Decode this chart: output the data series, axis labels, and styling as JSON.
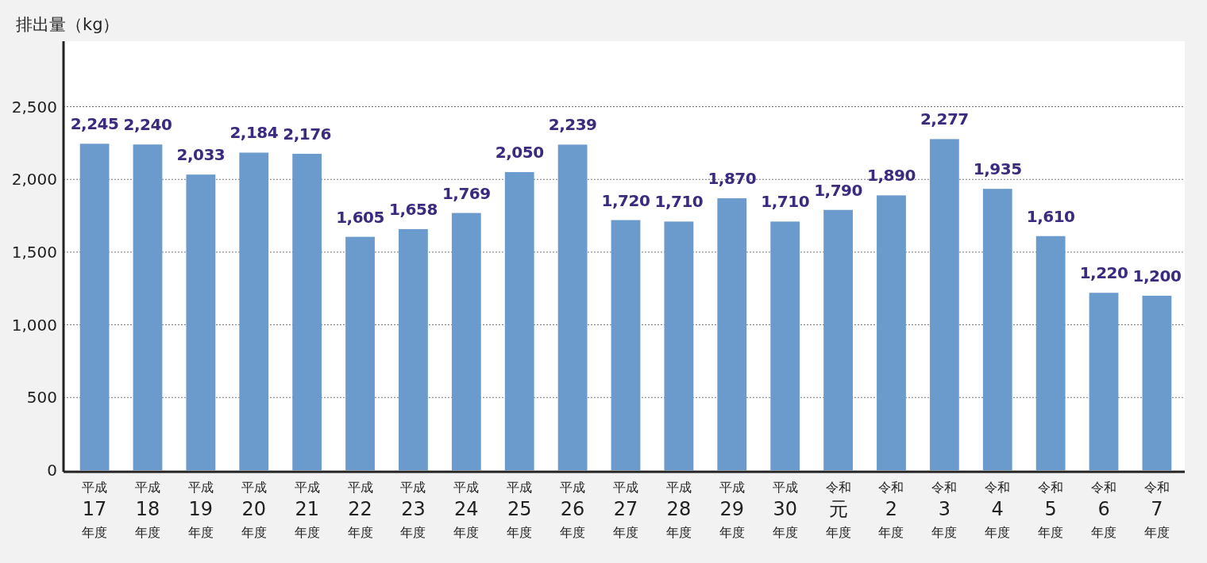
{
  "chart_data": {
    "type": "bar",
    "ylabel": "排出量（kg）",
    "categories": [
      "平成17年度",
      "平成18年度",
      "平成19年度",
      "平成20年度",
      "平成21年度",
      "平成22年度",
      "平成23年度",
      "平成24年度",
      "平成25年度",
      "平成26年度",
      "平成27年度",
      "平成28年度",
      "平成29年度",
      "平成30年度",
      "令和元年度",
      "令和2年度",
      "令和3年度",
      "令和4年度",
      "令和5年度",
      "令和6年度",
      "令和7年度"
    ],
    "values": [
      2245,
      2240,
      2033,
      2184,
      2176,
      1605,
      1658,
      1769,
      2050,
      2239,
      1720,
      1710,
      1870,
      1710,
      1790,
      1890,
      2277,
      1935,
      1610,
      1220,
      1200
    ],
    "value_labels": [
      "2,245",
      "2,240",
      "2,033",
      "2,184",
      "2,176",
      "1,605",
      "1,658",
      "1,769",
      "2,050",
      "2,239",
      "1,720",
      "1,710",
      "1,870",
      "1,710",
      "1,790",
      "1,890",
      "2,277",
      "1,935",
      "1,610",
      "1,220",
      "1,200"
    ],
    "color": "#6a9bcc",
    "ylim": [
      0,
      2950
    ],
    "yticks": [
      0,
      {
        "value": 500,
        "label": "500"
      },
      {
        "value": 1000,
        "label": "1,000"
      },
      {
        "value": 1500,
        "label": "1,500"
      },
      {
        "value": 2000,
        "label": "2,000"
      },
      {
        "value": 2500,
        "label": "2,500"
      }
    ],
    "grid": "y"
  }
}
